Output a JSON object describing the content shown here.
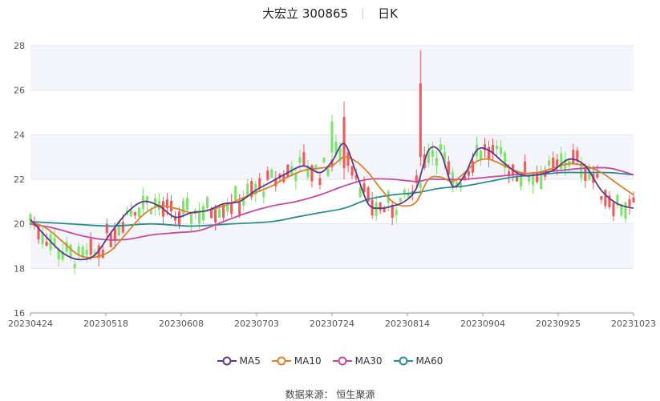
{
  "header": {
    "stock": "大宏立 300865",
    "period": "日K"
  },
  "source": "数据来源： 恒生聚源",
  "colors": {
    "up": "#ef5b5b",
    "down": "#7fe36b",
    "ma5": "#5b3a8e",
    "ma10": "#d9822b",
    "ma30": "#c64aa0",
    "ma60": "#2f8c8c"
  },
  "chart_data": {
    "type": "candlestick",
    "ylim": [
      16,
      28
    ],
    "yticks": [
      16,
      18,
      20,
      22,
      24,
      26,
      28
    ],
    "xticks": [
      "20230424",
      "20230518",
      "20230608",
      "20230703",
      "20230724",
      "20230814",
      "20230904",
      "20230925",
      "20231023"
    ],
    "grid": true,
    "legend_position": "bottom",
    "series": [
      {
        "name": "MA5",
        "color_key": "ma5",
        "points": [
          [
            0,
            20.2
          ],
          [
            4,
            19.4
          ],
          [
            8,
            18.7
          ],
          [
            12,
            18.4
          ],
          [
            16,
            18.6
          ],
          [
            20,
            19.6
          ],
          [
            24,
            20.5
          ],
          [
            28,
            21.0
          ],
          [
            32,
            20.8
          ],
          [
            36,
            20.3
          ],
          [
            40,
            20.5
          ],
          [
            44,
            20.6
          ],
          [
            48,
            20.9
          ],
          [
            52,
            21.0
          ],
          [
            56,
            21.5
          ],
          [
            60,
            21.9
          ],
          [
            64,
            22.3
          ],
          [
            68,
            22.6
          ],
          [
            72,
            22.3
          ],
          [
            75,
            22.8
          ],
          [
            78,
            23.6
          ],
          [
            81,
            22.3
          ],
          [
            84,
            20.9
          ],
          [
            87,
            20.7
          ],
          [
            90,
            20.8
          ],
          [
            93,
            21.0
          ],
          [
            96,
            21.6
          ],
          [
            99,
            23.3
          ],
          [
            102,
            23.2
          ],
          [
            105,
            21.7
          ],
          [
            108,
            22.2
          ],
          [
            111,
            23.3
          ],
          [
            114,
            23.3
          ],
          [
            118,
            22.7
          ],
          [
            122,
            22.2
          ],
          [
            126,
            22.2
          ],
          [
            130,
            22.4
          ],
          [
            134,
            22.9
          ],
          [
            138,
            22.6
          ],
          [
            142,
            21.5
          ],
          [
            146,
            20.9
          ],
          [
            150,
            20.7
          ]
        ]
      },
      {
        "name": "MA10",
        "color_key": "ma10",
        "points": [
          [
            0,
            20.1
          ],
          [
            4,
            19.8
          ],
          [
            8,
            19.2
          ],
          [
            12,
            18.6
          ],
          [
            16,
            18.5
          ],
          [
            20,
            18.8
          ],
          [
            24,
            19.6
          ],
          [
            28,
            20.4
          ],
          [
            32,
            20.8
          ],
          [
            36,
            20.7
          ],
          [
            40,
            20.5
          ],
          [
            44,
            20.6
          ],
          [
            48,
            20.8
          ],
          [
            52,
            21.1
          ],
          [
            56,
            21.4
          ],
          [
            60,
            21.7
          ],
          [
            64,
            22.1
          ],
          [
            68,
            22.4
          ],
          [
            72,
            22.5
          ],
          [
            75,
            22.6
          ],
          [
            78,
            23.0
          ],
          [
            81,
            22.8
          ],
          [
            84,
            22.3
          ],
          [
            87,
            21.6
          ],
          [
            90,
            21.0
          ],
          [
            93,
            20.8
          ],
          [
            96,
            21.0
          ],
          [
            99,
            22.0
          ],
          [
            102,
            22.1
          ],
          [
            105,
            21.9
          ],
          [
            108,
            22.3
          ],
          [
            111,
            22.8
          ],
          [
            114,
            22.9
          ],
          [
            118,
            22.6
          ],
          [
            122,
            22.3
          ],
          [
            126,
            22.3
          ],
          [
            130,
            22.5
          ],
          [
            134,
            22.7
          ],
          [
            138,
            22.6
          ],
          [
            142,
            22.3
          ],
          [
            146,
            21.8
          ],
          [
            150,
            21.3
          ]
        ]
      },
      {
        "name": "MA30",
        "color_key": "ma30",
        "points": [
          [
            0,
            20.0
          ],
          [
            6,
            19.8
          ],
          [
            12,
            19.5
          ],
          [
            18,
            19.3
          ],
          [
            24,
            19.3
          ],
          [
            30,
            19.5
          ],
          [
            36,
            19.6
          ],
          [
            42,
            19.7
          ],
          [
            48,
            20.1
          ],
          [
            54,
            20.5
          ],
          [
            60,
            20.8
          ],
          [
            66,
            21.0
          ],
          [
            72,
            21.3
          ],
          [
            78,
            21.7
          ],
          [
            84,
            22.0
          ],
          [
            90,
            22.0
          ],
          [
            96,
            21.9
          ],
          [
            99,
            22.0
          ],
          [
            102,
            22.0
          ],
          [
            108,
            22.0
          ],
          [
            114,
            22.1
          ],
          [
            120,
            22.2
          ],
          [
            126,
            22.3
          ],
          [
            132,
            22.4
          ],
          [
            138,
            22.5
          ],
          [
            144,
            22.5
          ],
          [
            150,
            22.2
          ]
        ]
      },
      {
        "name": "MA60",
        "color_key": "ma60",
        "points": [
          [
            0,
            20.1
          ],
          [
            10,
            20.0
          ],
          [
            20,
            19.9
          ],
          [
            30,
            20.0
          ],
          [
            40,
            19.9
          ],
          [
            50,
            20.0
          ],
          [
            60,
            20.1
          ],
          [
            66,
            20.3
          ],
          [
            72,
            20.5
          ],
          [
            78,
            20.7
          ],
          [
            84,
            21.1
          ],
          [
            90,
            21.3
          ],
          [
            96,
            21.4
          ],
          [
            102,
            21.6
          ],
          [
            108,
            21.7
          ],
          [
            114,
            21.9
          ],
          [
            120,
            22.1
          ],
          [
            126,
            22.2
          ],
          [
            132,
            22.3
          ],
          [
            138,
            22.3
          ],
          [
            144,
            22.3
          ],
          [
            150,
            22.2
          ]
        ]
      }
    ]
  }
}
